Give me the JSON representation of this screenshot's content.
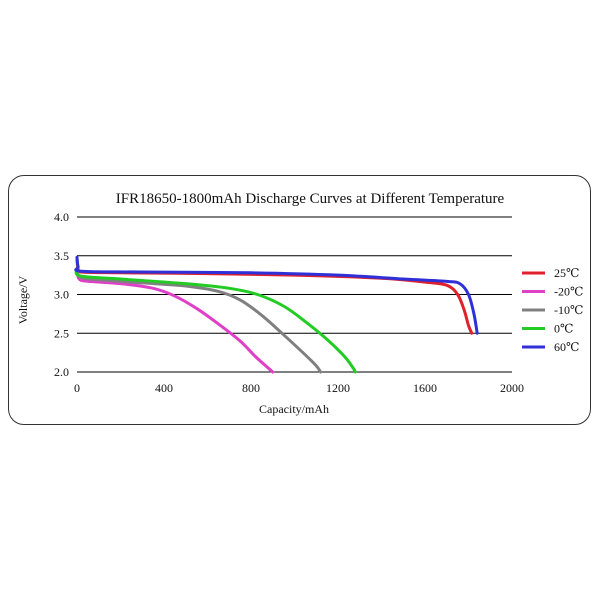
{
  "chart_data": {
    "type": "line",
    "title": "IFR18650-1800mAh  Discharge Curves at Different Temperature",
    "xlabel": "Capacity/mAh",
    "ylabel": "Voltage/V",
    "xlim": [
      0,
      2000
    ],
    "ylim": [
      2.0,
      4.0
    ],
    "x_ticks": [
      0,
      400,
      800,
      1200,
      1600,
      2000
    ],
    "y_ticks": [
      2.0,
      2.5,
      3.0,
      3.5,
      4.0
    ],
    "x_tick_labels": [
      "0",
      "400",
      "800",
      "1200",
      "1600",
      "2000"
    ],
    "y_tick_labels": [
      "2.0",
      "2.5",
      "3.0",
      "3.5",
      "4.0"
    ],
    "grid": "horizontal",
    "legend_position": "right",
    "series": [
      {
        "name": "25℃",
        "color": "#e0202a",
        "points": [
          [
            0,
            3.45
          ],
          [
            5,
            3.33
          ],
          [
            20,
            3.29
          ],
          [
            200,
            3.28
          ],
          [
            600,
            3.27
          ],
          [
            1000,
            3.25
          ],
          [
            1400,
            3.21
          ],
          [
            1600,
            3.16
          ],
          [
            1700,
            3.12
          ],
          [
            1750,
            3.0
          ],
          [
            1780,
            2.8
          ],
          [
            1800,
            2.6
          ],
          [
            1815,
            2.5
          ]
        ]
      },
      {
        "name": "-20℃",
        "color": "#e040c8",
        "points": [
          [
            0,
            3.3
          ],
          [
            10,
            3.2
          ],
          [
            50,
            3.17
          ],
          [
            200,
            3.14
          ],
          [
            350,
            3.08
          ],
          [
            450,
            2.98
          ],
          [
            550,
            2.82
          ],
          [
            650,
            2.62
          ],
          [
            750,
            2.4
          ],
          [
            820,
            2.2
          ],
          [
            880,
            2.05
          ],
          [
            900,
            2.0
          ]
        ]
      },
      {
        "name": "-10℃",
        "color": "#808080",
        "points": [
          [
            0,
            3.32
          ],
          [
            15,
            3.22
          ],
          [
            100,
            3.19
          ],
          [
            300,
            3.15
          ],
          [
            500,
            3.11
          ],
          [
            650,
            3.04
          ],
          [
            750,
            2.93
          ],
          [
            850,
            2.73
          ],
          [
            950,
            2.48
          ],
          [
            1050,
            2.22
          ],
          [
            1100,
            2.08
          ],
          [
            1120,
            2.0
          ]
        ]
      },
      {
        "name": "0℃",
        "color": "#22cc22",
        "points": [
          [
            0,
            3.33
          ],
          [
            15,
            3.24
          ],
          [
            200,
            3.2
          ],
          [
            500,
            3.14
          ],
          [
            700,
            3.08
          ],
          [
            830,
            3.0
          ],
          [
            950,
            2.85
          ],
          [
            1050,
            2.65
          ],
          [
            1150,
            2.42
          ],
          [
            1230,
            2.2
          ],
          [
            1270,
            2.05
          ],
          [
            1280,
            2.0
          ]
        ]
      },
      {
        "name": "60℃",
        "color": "#3030d8",
        "points": [
          [
            0,
            3.48
          ],
          [
            5,
            3.36
          ],
          [
            20,
            3.3
          ],
          [
            300,
            3.29
          ],
          [
            800,
            3.28
          ],
          [
            1200,
            3.25
          ],
          [
            1500,
            3.2
          ],
          [
            1700,
            3.17
          ],
          [
            1760,
            3.14
          ],
          [
            1800,
            3.0
          ],
          [
            1825,
            2.75
          ],
          [
            1840,
            2.5
          ]
        ]
      }
    ]
  }
}
